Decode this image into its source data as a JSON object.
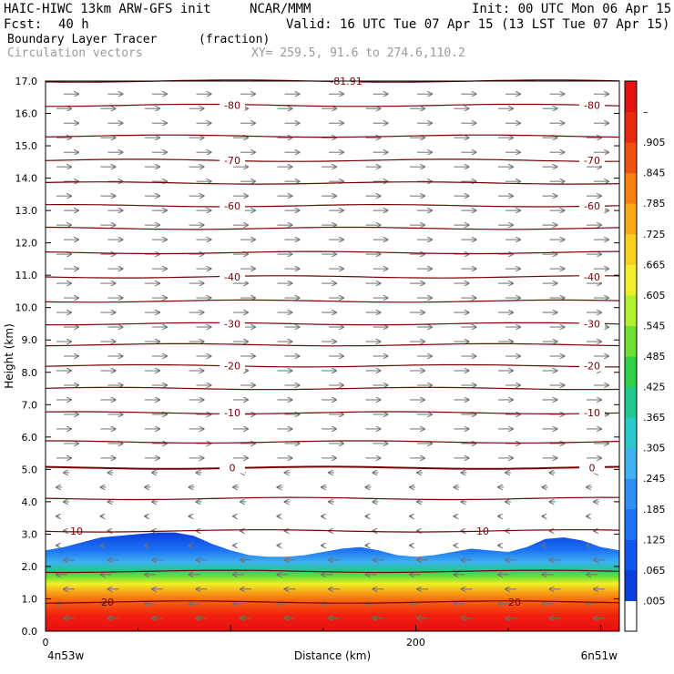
{
  "header": {
    "model": "HAIC-HIWC 13km ARW-GFS init",
    "org": "NCAR/MMM",
    "init": "Init: 00 UTC Mon 06 Apr 15",
    "fcst_label": "Fcst:",
    "fcst_value": "40 h",
    "valid": "Valid: 16 UTC Tue 07 Apr 15 (13 LST Tue 07 Apr 15)",
    "field": "Boundary Layer Tracer",
    "field_units": "(fraction)",
    "overlay": "Circulation vectors",
    "xy": "XY= 259.5, 91.6 to 274.6,110.2"
  },
  "colors": {
    "contour": "#7a0000",
    "vector": "#707070",
    "background": "#ffffff"
  },
  "chart_data": {
    "type": "heatmap",
    "title": "Boundary Layer Tracer",
    "xlabel": "Distance (km)",
    "ylabel": "Height (km)",
    "xlim": [
      0,
      310
    ],
    "ylim": [
      0,
      17
    ],
    "x_ticks": [
      0,
      200
    ],
    "y_ticks": [
      "0.0",
      "1.0",
      "2.0",
      "3.0",
      "4.0",
      "5.0",
      "6.0",
      "7.0",
      "8.0",
      "9.0",
      "10.0",
      "11.0",
      "12.0",
      "13.0",
      "14.0",
      "15.0",
      "16.0",
      "17.0"
    ],
    "x_endpoints": {
      "left": "4n53w",
      "right": "6n51w"
    },
    "colorbar": {
      "labels": [
        ".005",
        ".065",
        ".125",
        ".185",
        ".245",
        ".305",
        ".365",
        ".425",
        ".485",
        ".545",
        ".605",
        ".665",
        ".725",
        ".785",
        ".845",
        ".905",
        "–"
      ],
      "colors": [
        "#ffffff",
        "#0a3fe0",
        "#0e57f0",
        "#1c73f5",
        "#2f8ff5",
        "#3fb0f0",
        "#2cc8cc",
        "#20c890",
        "#30d048",
        "#70e030",
        "#b0f030",
        "#f0f028",
        "#f8d020",
        "#f8a818",
        "#f88010",
        "#f05010",
        "#e82a10",
        "#e81010"
      ]
    },
    "tracer_top": {
      "x": [
        0,
        10,
        20,
        30,
        40,
        50,
        60,
        70,
        80,
        90,
        100,
        110,
        120,
        130,
        140,
        150,
        160,
        170,
        180,
        190,
        200,
        210,
        220,
        230,
        240,
        250,
        260,
        270,
        280,
        290,
        300,
        310
      ],
      "height": [
        2.5,
        2.6,
        2.75,
        2.9,
        2.95,
        3.0,
        3.05,
        3.05,
        2.95,
        2.7,
        2.5,
        2.35,
        2.3,
        2.3,
        2.35,
        2.45,
        2.55,
        2.6,
        2.5,
        2.35,
        2.3,
        2.35,
        2.45,
        2.55,
        2.5,
        2.45,
        2.6,
        2.85,
        2.9,
        2.8,
        2.6,
        2.5
      ]
    },
    "contours": [
      {
        "label": "-81.91",
        "height": 17.0
      },
      {
        "label": "-80",
        "height": 16.25
      },
      {
        "label": "",
        "height": 15.3
      },
      {
        "label": "-70",
        "height": 14.55
      },
      {
        "label": "",
        "height": 13.85
      },
      {
        "label": "-60",
        "height": 13.15
      },
      {
        "label": "",
        "height": 12.45
      },
      {
        "label": "",
        "height": 11.7
      },
      {
        "label": "-40",
        "height": 10.95
      },
      {
        "label": "",
        "height": 10.2
      },
      {
        "label": "-30",
        "height": 9.5
      },
      {
        "label": "",
        "height": 8.85
      },
      {
        "label": "-20",
        "height": 8.2
      },
      {
        "label": "",
        "height": 7.5
      },
      {
        "label": "-10",
        "height": 6.75
      },
      {
        "label": "",
        "height": 5.85
      },
      {
        "label": "0",
        "height": 5.05
      },
      {
        "label": "",
        "height": 4.1
      },
      {
        "label": "10",
        "height": 3.1
      },
      {
        "label": "",
        "height": 1.85
      },
      {
        "label": "20",
        "height": 0.9
      }
    ]
  }
}
